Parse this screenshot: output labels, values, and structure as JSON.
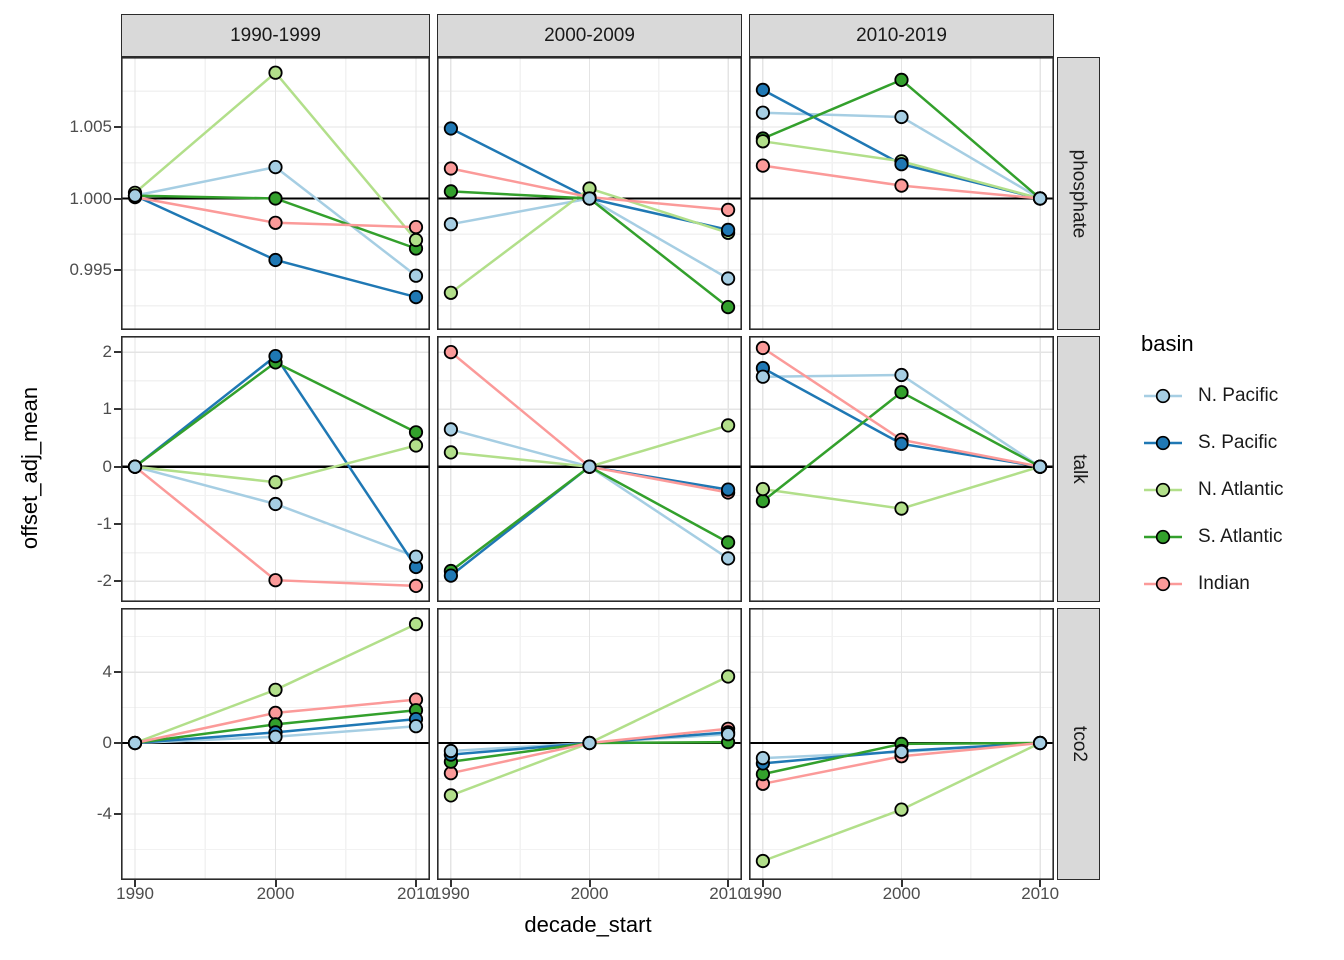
{
  "figure": {
    "x_label": "decade_start",
    "y_label": "offset_adj_mean",
    "legend": {
      "title": "basin",
      "items": [
        {
          "label": "N. Pacific",
          "color": "#a6cee3"
        },
        {
          "label": "S. Pacific",
          "color": "#1f78b4"
        },
        {
          "label": "N. Atlantic",
          "color": "#b2df8a"
        },
        {
          "label": "S. Atlantic",
          "color": "#33a02c"
        },
        {
          "label": "Indian",
          "color": "#fb9a99"
        }
      ]
    },
    "colors": {
      "strip_background": "#d9d9d9",
      "panel_border": "#2b2b2b",
      "grid_major": "#e4e4e4",
      "grid_minor": "#f2f2f2",
      "reference_line": "#000000",
      "point_outline": "#000000",
      "axis_text": "#4d4d4d"
    }
  },
  "chart_data": {
    "type": "line",
    "title": "",
    "xlabel": "decade_start",
    "ylabel": "offset_adj_mean",
    "legend_title": "basin",
    "legend_position": "right",
    "grid": true,
    "x": [
      1990,
      2000,
      2010
    ],
    "x_tick_labels": [
      "1990",
      "2000",
      "2010"
    ],
    "xlim": [
      1989,
      2011
    ],
    "col_facets": [
      "1990-1999",
      "2000-2009",
      "2010-2019"
    ],
    "row_facets": [
      {
        "name": "phosphate",
        "ylim": [
          0.9908,
          1.0099
        ],
        "yticks": [
          0.995,
          1.0,
          1.005
        ],
        "ytick_labels": [
          "0.995",
          "1.000",
          "1.005"
        ],
        "refline": 1.0
      },
      {
        "name": "talk",
        "ylim": [
          -2.36,
          2.28
        ],
        "yticks": [
          -2,
          -1,
          0,
          1,
          2
        ],
        "ytick_labels": [
          "-2",
          "-1",
          "0",
          "1",
          "2"
        ],
        "refline": 0
      },
      {
        "name": "tco2",
        "ylim": [
          -7.72,
          7.61
        ],
        "yticks": [
          -4,
          0,
          4
        ],
        "ytick_labels": [
          "-4",
          "0",
          "4"
        ],
        "refline": 0
      }
    ],
    "series_order": [
      "N. Pacific",
      "S. Pacific",
      "N. Atlantic",
      "S. Atlantic",
      "Indian"
    ],
    "panels": [
      {
        "row": "phosphate",
        "col": "1990-1999",
        "series": {
          "N. Pacific": [
            1.0002,
            1.0022,
            0.9946
          ],
          "S. Pacific": [
            1.0002,
            0.9957,
            0.9931
          ],
          "N. Atlantic": [
            1.0004,
            1.0088,
            0.9971
          ],
          "S. Atlantic": [
            1.0002,
            1.0,
            0.9965
          ],
          "Indian": [
            1.0001,
            0.9983,
            0.998
          ]
        }
      },
      {
        "row": "phosphate",
        "col": "2000-2009",
        "series": {
          "N. Pacific": [
            0.9982,
            1.0,
            0.9944
          ],
          "S. Pacific": [
            1.0049,
            1.0,
            0.9978
          ],
          "N. Atlantic": [
            0.9934,
            1.0007,
            0.9976
          ],
          "S. Atlantic": [
            1.0005,
            1.0,
            0.9924
          ],
          "Indian": [
            1.0021,
            1.0001,
            0.9992
          ]
        }
      },
      {
        "row": "phosphate",
        "col": "2010-2019",
        "series": {
          "N. Pacific": [
            1.006,
            1.0057,
            1.0
          ],
          "S. Pacific": [
            1.0076,
            1.0024,
            1.0
          ],
          "N. Atlantic": [
            1.004,
            1.0026,
            1.0
          ],
          "S. Atlantic": [
            1.0042,
            1.0083,
            1.0
          ],
          "Indian": [
            1.0023,
            1.0009,
            1.0
          ]
        }
      },
      {
        "row": "talk",
        "col": "1990-1999",
        "series": {
          "N. Pacific": [
            0,
            -0.65,
            -1.57
          ],
          "S. Pacific": [
            0,
            1.93,
            -1.75
          ],
          "N. Atlantic": [
            0,
            -0.27,
            0.37
          ],
          "S. Atlantic": [
            0,
            1.82,
            0.6
          ],
          "Indian": [
            0,
            -1.98,
            -2.08
          ]
        }
      },
      {
        "row": "talk",
        "col": "2000-2009",
        "series": {
          "N. Pacific": [
            0.65,
            0,
            -1.6
          ],
          "S. Pacific": [
            -1.9,
            0,
            -0.4
          ],
          "N. Atlantic": [
            0.25,
            0,
            0.72
          ],
          "S. Atlantic": [
            -1.82,
            0,
            -1.32
          ],
          "Indian": [
            2.0,
            0,
            -0.45
          ]
        }
      },
      {
        "row": "talk",
        "col": "2010-2019",
        "series": {
          "N. Pacific": [
            1.57,
            1.6,
            0
          ],
          "S. Pacific": [
            1.72,
            0.4,
            0
          ],
          "N. Atlantic": [
            -0.39,
            -0.73,
            0
          ],
          "S. Atlantic": [
            -0.6,
            1.3,
            0
          ],
          "Indian": [
            2.07,
            0.47,
            0
          ]
        }
      },
      {
        "row": "tco2",
        "col": "1990-1999",
        "series": {
          "N. Pacific": [
            0,
            0.35,
            0.95
          ],
          "S. Pacific": [
            0,
            0.6,
            1.35
          ],
          "N. Atlantic": [
            0,
            3.0,
            6.7
          ],
          "S. Atlantic": [
            0,
            1.05,
            1.85
          ],
          "Indian": [
            0,
            1.7,
            2.45
          ]
        }
      },
      {
        "row": "tco2",
        "col": "2000-2009",
        "series": {
          "N. Pacific": [
            -0.45,
            0,
            0.5
          ],
          "S. Pacific": [
            -0.65,
            0,
            0.6
          ],
          "N. Atlantic": [
            -2.95,
            0,
            3.75
          ],
          "S. Atlantic": [
            -1.05,
            0,
            0.05
          ],
          "Indian": [
            -1.7,
            0,
            0.8
          ]
        }
      },
      {
        "row": "tco2",
        "col": "2010-2019",
        "series": {
          "N. Pacific": [
            -0.85,
            -0.5,
            0
          ],
          "S. Pacific": [
            -1.15,
            -0.45,
            0
          ],
          "N. Atlantic": [
            -6.65,
            -3.75,
            0
          ],
          "S. Atlantic": [
            -1.75,
            -0.05,
            0
          ],
          "Indian": [
            -2.3,
            -0.75,
            0
          ]
        }
      }
    ]
  }
}
